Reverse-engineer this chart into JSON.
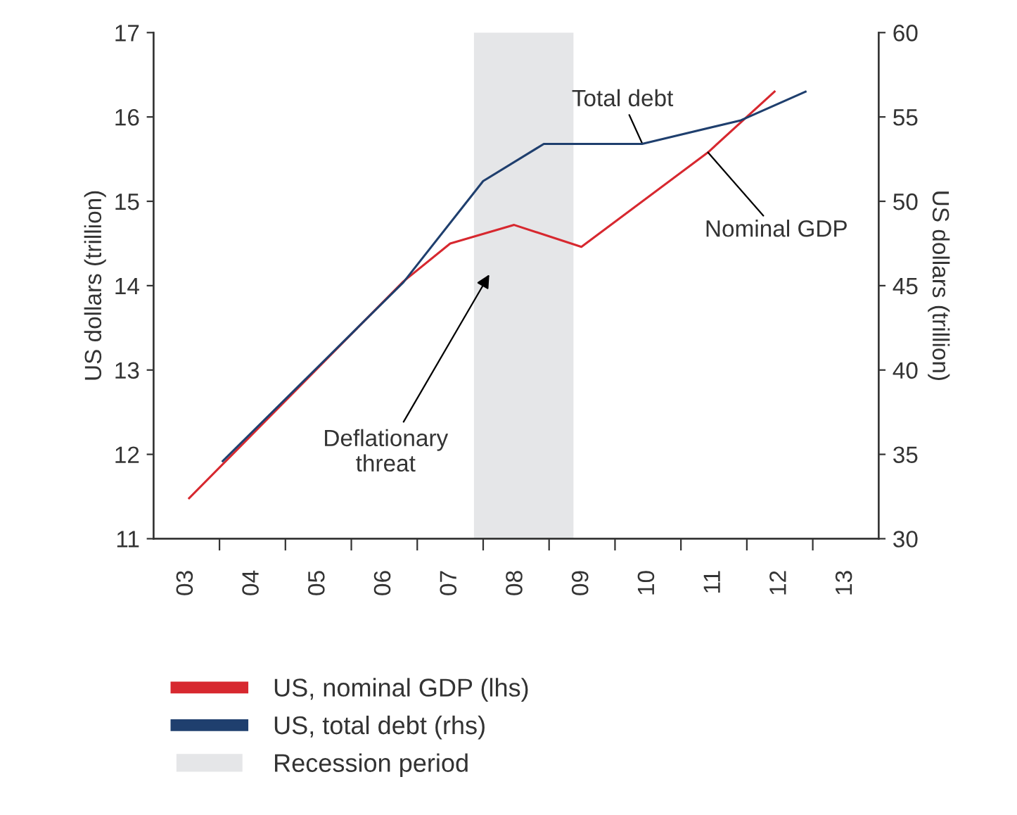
{
  "chart_data": {
    "type": "line",
    "xlim": [
      2.5,
      13.5
    ],
    "xticks": [
      {
        "value": 3,
        "label": "03"
      },
      {
        "value": 3.5,
        "label": null
      },
      {
        "value": 4,
        "label": "04"
      },
      {
        "value": 4.5,
        "label": null
      },
      {
        "value": 5,
        "label": "05"
      },
      {
        "value": 5.5,
        "label": null
      },
      {
        "value": 6,
        "label": "06"
      },
      {
        "value": 6.5,
        "label": null
      },
      {
        "value": 7,
        "label": "07"
      },
      {
        "value": 7.5,
        "label": null
      },
      {
        "value": 8,
        "label": "08"
      },
      {
        "value": 8.5,
        "label": null
      },
      {
        "value": 9,
        "label": "09"
      },
      {
        "value": 9.5,
        "label": null
      },
      {
        "value": 10,
        "label": "10"
      },
      {
        "value": 10.5,
        "label": null
      },
      {
        "value": 11,
        "label": "11"
      },
      {
        "value": 11.5,
        "label": null
      },
      {
        "value": 12,
        "label": "12"
      },
      {
        "value": 12.5,
        "label": null
      },
      {
        "value": 13,
        "label": "13"
      }
    ],
    "ylim": [
      11,
      17
    ],
    "yticks": [
      11,
      12,
      13,
      14,
      15,
      16,
      17
    ],
    "y2lim": [
      30,
      60
    ],
    "y2ticks": [
      30,
      35,
      40,
      45,
      50,
      55,
      60
    ],
    "ylabel": "US dollars (trillion)",
    "y2label": "US dollars (trillion)",
    "series": [
      {
        "name": "US, nominal GDP (lhs)",
        "color": "#d7282f",
        "x": [
          3.04,
          6.29,
          7.0,
          7.97,
          8.99,
          10.91,
          11.92
        ],
        "values": [
          11.48,
          14.05,
          14.5,
          14.72,
          14.46,
          15.58,
          16.3
        ]
      },
      {
        "name": "US, total debt (rhs)",
        "color": "#1f3f6e",
        "axis": "y2",
        "x": [
          3.55,
          6.29,
          7.5,
          8.42,
          9.91,
          11.41,
          12.39
        ],
        "values": [
          34.6,
          45.2,
          51.2,
          53.4,
          53.4,
          54.8,
          56.5
        ]
      }
    ],
    "bands": [
      {
        "axis": "x",
        "from": 7.36,
        "to": 8.87,
        "label": "Recession period",
        "color": "#e5e6e8"
      }
    ],
    "annotations": [
      {
        "text": "Total debt",
        "x": 9.91,
        "y": 15.69
      },
      {
        "text": "Nominal GDP",
        "x": 10.91,
        "y": 15.58
      },
      "Deflationary\nthreat"
    ],
    "legend": "bottom left",
    "grid": false,
    "marker": "none",
    "line_style": "solid"
  }
}
